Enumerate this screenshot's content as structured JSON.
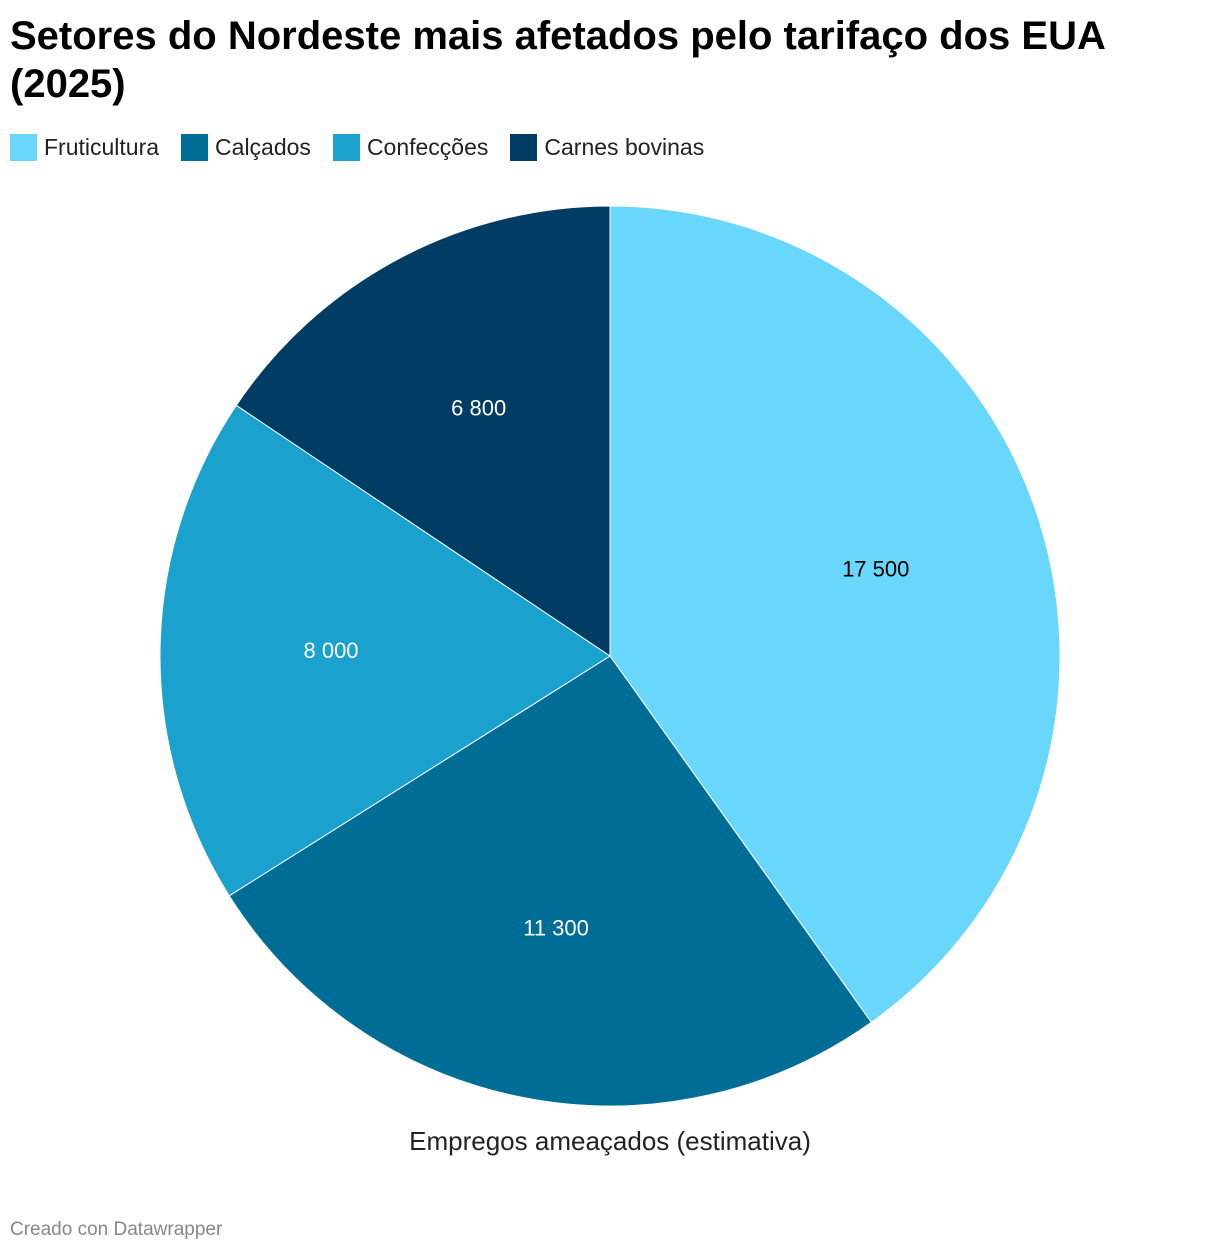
{
  "chart_data": {
    "type": "pie",
    "title": "Setores do Nordeste mais afetados pelo tarifaço dos EUA (2025)",
    "categories": [
      "Fruticultura",
      "Calçados",
      "Confecções",
      "Carnes bovinas"
    ],
    "values": [
      17500,
      11300,
      8000,
      6800
    ],
    "value_labels": [
      "17 500",
      "11 300",
      "8 000",
      "6 800"
    ],
    "colors": [
      "#69d7fc",
      "#006d96",
      "#1ba1cd",
      "#003c63"
    ],
    "label_colors": [
      "#000000",
      "#ffffff",
      "#ffffff",
      "#ffffff"
    ],
    "xlabel": "Empregos ameaçados (estimativa)"
  },
  "footer": "Creado con Datawrapper"
}
